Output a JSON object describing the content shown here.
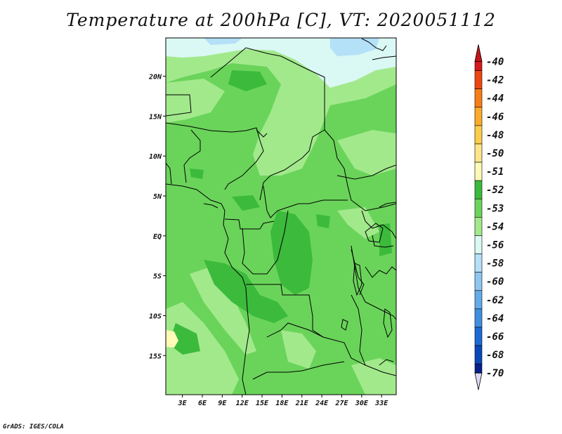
{
  "chart_data": {
    "type": "heatmap",
    "title": "Temperature at 200hPa [C], VT: 2020051112",
    "x_ticks": [
      "3E",
      "6E",
      "9E",
      "12E",
      "15E",
      "18E",
      "21E",
      "24E",
      "27E",
      "30E",
      "33E"
    ],
    "y_ticks": [
      "20N",
      "15N",
      "10N",
      "5N",
      "EQ",
      "5S",
      "10S",
      "15S"
    ],
    "x_range": [
      "0.5E",
      "35.2E"
    ],
    "y_range": [
      "19.9S",
      "24.8N"
    ],
    "colorbar": {
      "labels": [
        "-40",
        "-42",
        "-44",
        "-46",
        "-48",
        "-50",
        "-51",
        "-52",
        "-53",
        "-54",
        "-56",
        "-58",
        "-60",
        "-62",
        "-64",
        "-66",
        "-68",
        "-70"
      ],
      "colors": [
        "#d8161e",
        "#ec4712",
        "#f77e17",
        "#fbaa2a",
        "#fccc4b",
        "#fde589",
        "#fdf9b6",
        "#3cba3c",
        "#6ad45a",
        "#a2e98c",
        "#daf8f4",
        "#b4e0f8",
        "#8ec6f0",
        "#64aae8",
        "#3f8fe0",
        "#1e6ad5",
        "#0b48b8",
        "#06208a",
        "#100a60"
      ],
      "end_arrows": {
        "top": "#c61418",
        "bottom": "#dcd6f2"
      }
    }
  },
  "footer": {
    "credit": "GrADS: IGES/COLA"
  }
}
